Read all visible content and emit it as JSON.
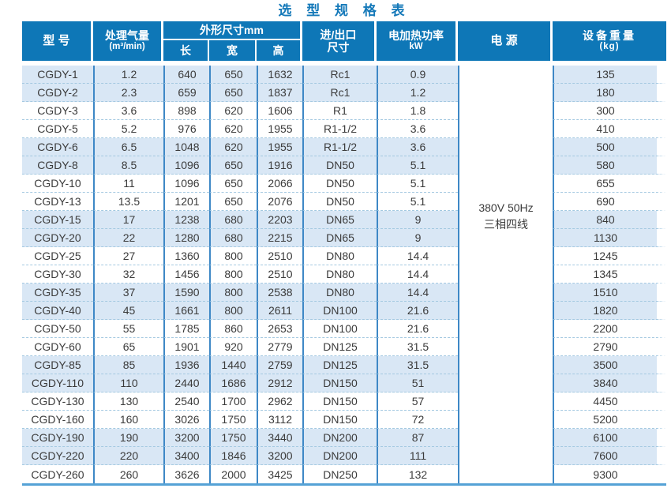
{
  "title": "选 型 规 格 表",
  "table": {
    "headers": {
      "model": "型 号",
      "airflow_line1": "处理气量",
      "airflow_line2": "(m³/min)",
      "dimensions": "外形尺寸mm",
      "length": "长",
      "width": "宽",
      "height": "高",
      "port_line1": "进/出口",
      "port_line2": "尺寸",
      "power_line1": "电加热功率",
      "power_line2": "kW",
      "supply": "电 源",
      "weight_line1": "设备重量",
      "weight_line2": "(kg)"
    },
    "power_supply": {
      "line1": "380V 50Hz",
      "line2": "三相四线"
    },
    "rows": [
      {
        "model": "CGDY-1",
        "airflow": "1.2",
        "length": "640",
        "width": "650",
        "height": "1632",
        "port": "Rc1",
        "power": "0.9",
        "weight": "135"
      },
      {
        "model": "CGDY-2",
        "airflow": "2.3",
        "length": "659",
        "width": "650",
        "height": "1837",
        "port": "Rc1",
        "power": "1.2",
        "weight": "180"
      },
      {
        "model": "CGDY-3",
        "airflow": "3.6",
        "length": "898",
        "width": "620",
        "height": "1606",
        "port": "R1",
        "power": "1.8",
        "weight": "300"
      },
      {
        "model": "CGDY-5",
        "airflow": "5.2",
        "length": "976",
        "width": "620",
        "height": "1955",
        "port": "R1-1/2",
        "power": "3.6",
        "weight": "410"
      },
      {
        "model": "CGDY-6",
        "airflow": "6.5",
        "length": "1048",
        "width": "620",
        "height": "1955",
        "port": "R1-1/2",
        "power": "3.6",
        "weight": "500"
      },
      {
        "model": "CGDY-8",
        "airflow": "8.5",
        "length": "1096",
        "width": "650",
        "height": "1916",
        "port": "DN50",
        "power": "5.1",
        "weight": "580"
      },
      {
        "model": "CGDY-10",
        "airflow": "11",
        "length": "1096",
        "width": "650",
        "height": "2066",
        "port": "DN50",
        "power": "5.1",
        "weight": "655"
      },
      {
        "model": "CGDY-13",
        "airflow": "13.5",
        "length": "1201",
        "width": "650",
        "height": "2076",
        "port": "DN50",
        "power": "5.1",
        "weight": "690"
      },
      {
        "model": "CGDY-15",
        "airflow": "17",
        "length": "1238",
        "width": "680",
        "height": "2203",
        "port": "DN65",
        "power": "9",
        "weight": "840"
      },
      {
        "model": "CGDY-20",
        "airflow": "22",
        "length": "1280",
        "width": "680",
        "height": "2215",
        "port": "DN65",
        "power": "9",
        "weight": "1130"
      },
      {
        "model": "CGDY-25",
        "airflow": "27",
        "length": "1360",
        "width": "800",
        "height": "2510",
        "port": "DN80",
        "power": "14.4",
        "weight": "1245"
      },
      {
        "model": "CGDY-30",
        "airflow": "32",
        "length": "1456",
        "width": "800",
        "height": "2510",
        "port": "DN80",
        "power": "14.4",
        "weight": "1345"
      },
      {
        "model": "CGDY-35",
        "airflow": "37",
        "length": "1590",
        "width": "800",
        "height": "2538",
        "port": "DN80",
        "power": "14.4",
        "weight": "1510"
      },
      {
        "model": "CGDY-40",
        "airflow": "45",
        "length": "1661",
        "width": "800",
        "height": "2611",
        "port": "DN100",
        "power": "21.6",
        "weight": "1820"
      },
      {
        "model": "CGDY-50",
        "airflow": "55",
        "length": "1785",
        "width": "860",
        "height": "2653",
        "port": "DN100",
        "power": "21.6",
        "weight": "2200"
      },
      {
        "model": "CGDY-60",
        "airflow": "65",
        "length": "1901",
        "width": "920",
        "height": "2779",
        "port": "DN125",
        "power": "31.5",
        "weight": "2790"
      },
      {
        "model": "CGDY-85",
        "airflow": "85",
        "length": "1936",
        "width": "1440",
        "height": "2759",
        "port": "DN125",
        "power": "31.5",
        "weight": "3500"
      },
      {
        "model": "CGDY-110",
        "airflow": "110",
        "length": "2440",
        "width": "1686",
        "height": "2912",
        "port": "DN150",
        "power": "51",
        "weight": "3840"
      },
      {
        "model": "CGDY-130",
        "airflow": "130",
        "length": "2540",
        "width": "1700",
        "height": "2962",
        "port": "DN150",
        "power": "57",
        "weight": "4450"
      },
      {
        "model": "CGDY-160",
        "airflow": "160",
        "length": "3026",
        "width": "1750",
        "height": "3112",
        "port": "DN150",
        "power": "72",
        "weight": "5200"
      },
      {
        "model": "CGDY-190",
        "airflow": "190",
        "length": "3200",
        "width": "1750",
        "height": "3440",
        "port": "DN200",
        "power": "87",
        "weight": "6100"
      },
      {
        "model": "CGDY-220",
        "airflow": "220",
        "length": "3400",
        "width": "1846",
        "height": "3200",
        "port": "DN200",
        "power": "111",
        "weight": "7600"
      },
      {
        "model": "CGDY-260",
        "airflow": "260",
        "length": "3626",
        "width": "2000",
        "height": "3425",
        "port": "DN250",
        "power": "132",
        "weight": "9300"
      }
    ]
  },
  "colors": {
    "header_bg": "#0e77b7",
    "title": "#1579b9",
    "row_stripe": "#d9e7f5",
    "grid_line": "#3e88c6",
    "dashed_line": "#a4c9e1",
    "body_text": "#3b3b3b",
    "bottom_rule": "#55a2d6"
  }
}
